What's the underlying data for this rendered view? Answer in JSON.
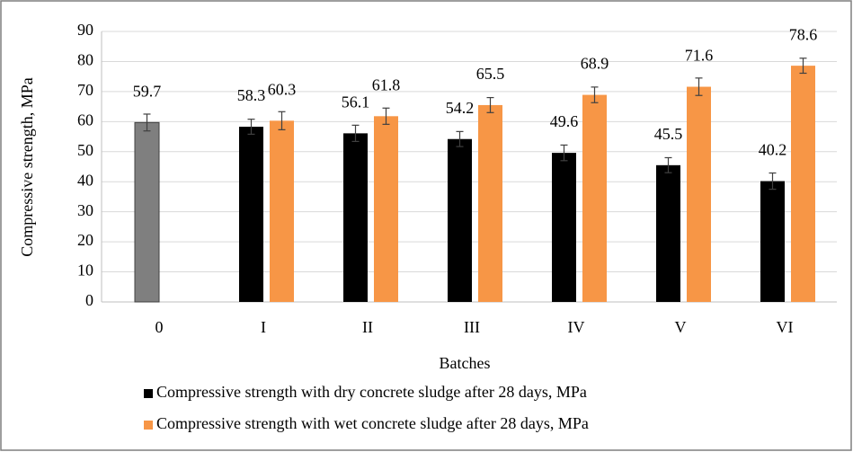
{
  "chart_data": {
    "type": "bar",
    "y_label": "Compressive strength, MPa",
    "x_label": "Batches",
    "categories": [
      "0",
      "I",
      "II",
      "III",
      "IV",
      "V",
      "VI"
    ],
    "series": [
      {
        "name": "Compressive strength with dry concrete sludge after 28 days, MPa",
        "color": "#000000",
        "point_colors": [
          "#7f7f7f",
          "#000000",
          "#000000",
          "#000000",
          "#000000",
          "#000000",
          "#000000"
        ],
        "values": [
          59.7,
          58.3,
          56.1,
          54.2,
          49.6,
          45.5,
          40.2
        ],
        "errors": [
          2.8,
          2.5,
          2.7,
          2.5,
          2.6,
          2.5,
          2.7
        ]
      },
      {
        "name": "Compressive strength with wet concrete sludge after 28 days, MPa",
        "color": "#f79646",
        "values": [
          null,
          60.3,
          61.8,
          65.5,
          68.9,
          71.6,
          78.6
        ],
        "errors": [
          null,
          3.0,
          2.7,
          2.5,
          2.6,
          2.9,
          2.5
        ]
      }
    ],
    "ylim": [
      0,
      90
    ],
    "yticks": [
      0,
      10,
      20,
      30,
      40,
      50,
      60,
      70,
      80,
      90
    ],
    "grid": true
  }
}
